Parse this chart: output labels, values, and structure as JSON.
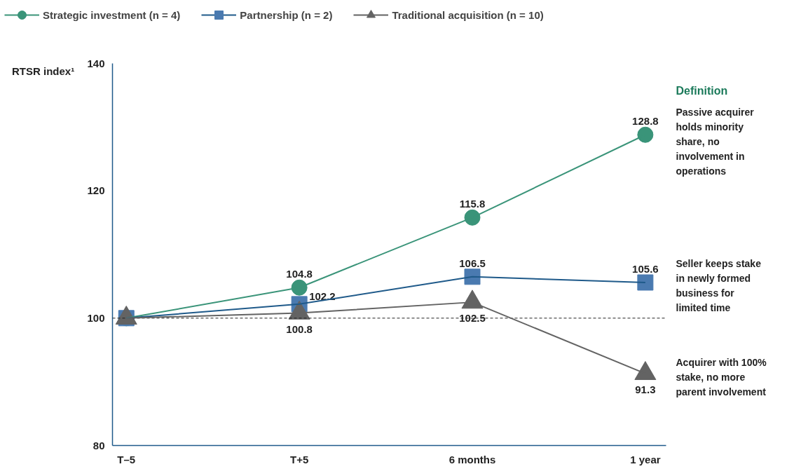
{
  "chart_data": {
    "type": "line",
    "ylabel": "RTSR index¹",
    "categories": [
      "T–5",
      "T+5",
      "6 months",
      "1 year"
    ],
    "ylim": [
      80,
      140
    ],
    "yticks": [
      80,
      100,
      120,
      140
    ],
    "series": [
      {
        "name": "Strategic investment (n = 4)",
        "color": "#3a9479",
        "marker": "circle",
        "values": [
          100,
          104.8,
          115.8,
          128.8
        ],
        "value_labels": [
          null,
          "104.8",
          "115.8",
          "128.8"
        ]
      },
      {
        "name": "Partnership (n = 2)",
        "color": "#4a7ab0",
        "marker": "square",
        "values": [
          100,
          102.2,
          106.5,
          105.6
        ],
        "value_labels": [
          null,
          "102.2",
          "106.5",
          "105.6"
        ]
      },
      {
        "name": "Traditional acquisition (n = 10)",
        "color": "#636363",
        "marker": "triangle",
        "values": [
          100,
          100.8,
          102.5,
          91.3
        ],
        "value_labels": [
          null,
          "100.8",
          "102.5",
          "91.3"
        ]
      }
    ],
    "ref_lines": [
      {
        "axis": "y",
        "value": 100,
        "label": null,
        "color": "#222222",
        "line_style": "dashed"
      }
    ],
    "annotations": [
      "Definition",
      "Passive acquirer holds minority share, no involvement in operations",
      "Seller keeps stake in newly formed business for limited time",
      "Acquirer with 100% stake, no more parent involvement"
    ],
    "legend": "top left",
    "grid": false
  }
}
